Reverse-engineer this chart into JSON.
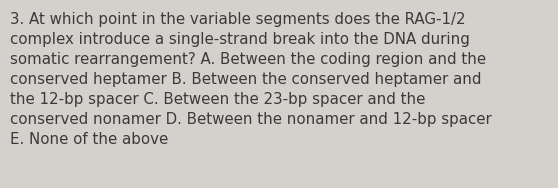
{
  "lines": [
    "3. At which point in the variable segments does the RAG-1/2",
    "complex introduce a single-strand break into the DNA during",
    "somatic rearrangement? A. Between the coding region and the",
    "conserved heptamer B. Between the conserved heptamer and",
    "the 12-bp spacer C. Between the 23-bp spacer and the",
    "conserved nonamer D. Between the nonamer and 12-bp spacer",
    "E. None of the above"
  ],
  "background_color": "#d4d1cd",
  "text_color": "#3a3a3a",
  "font_size": 10.8,
  "fig_width": 5.58,
  "fig_height": 1.88,
  "dpi": 100
}
